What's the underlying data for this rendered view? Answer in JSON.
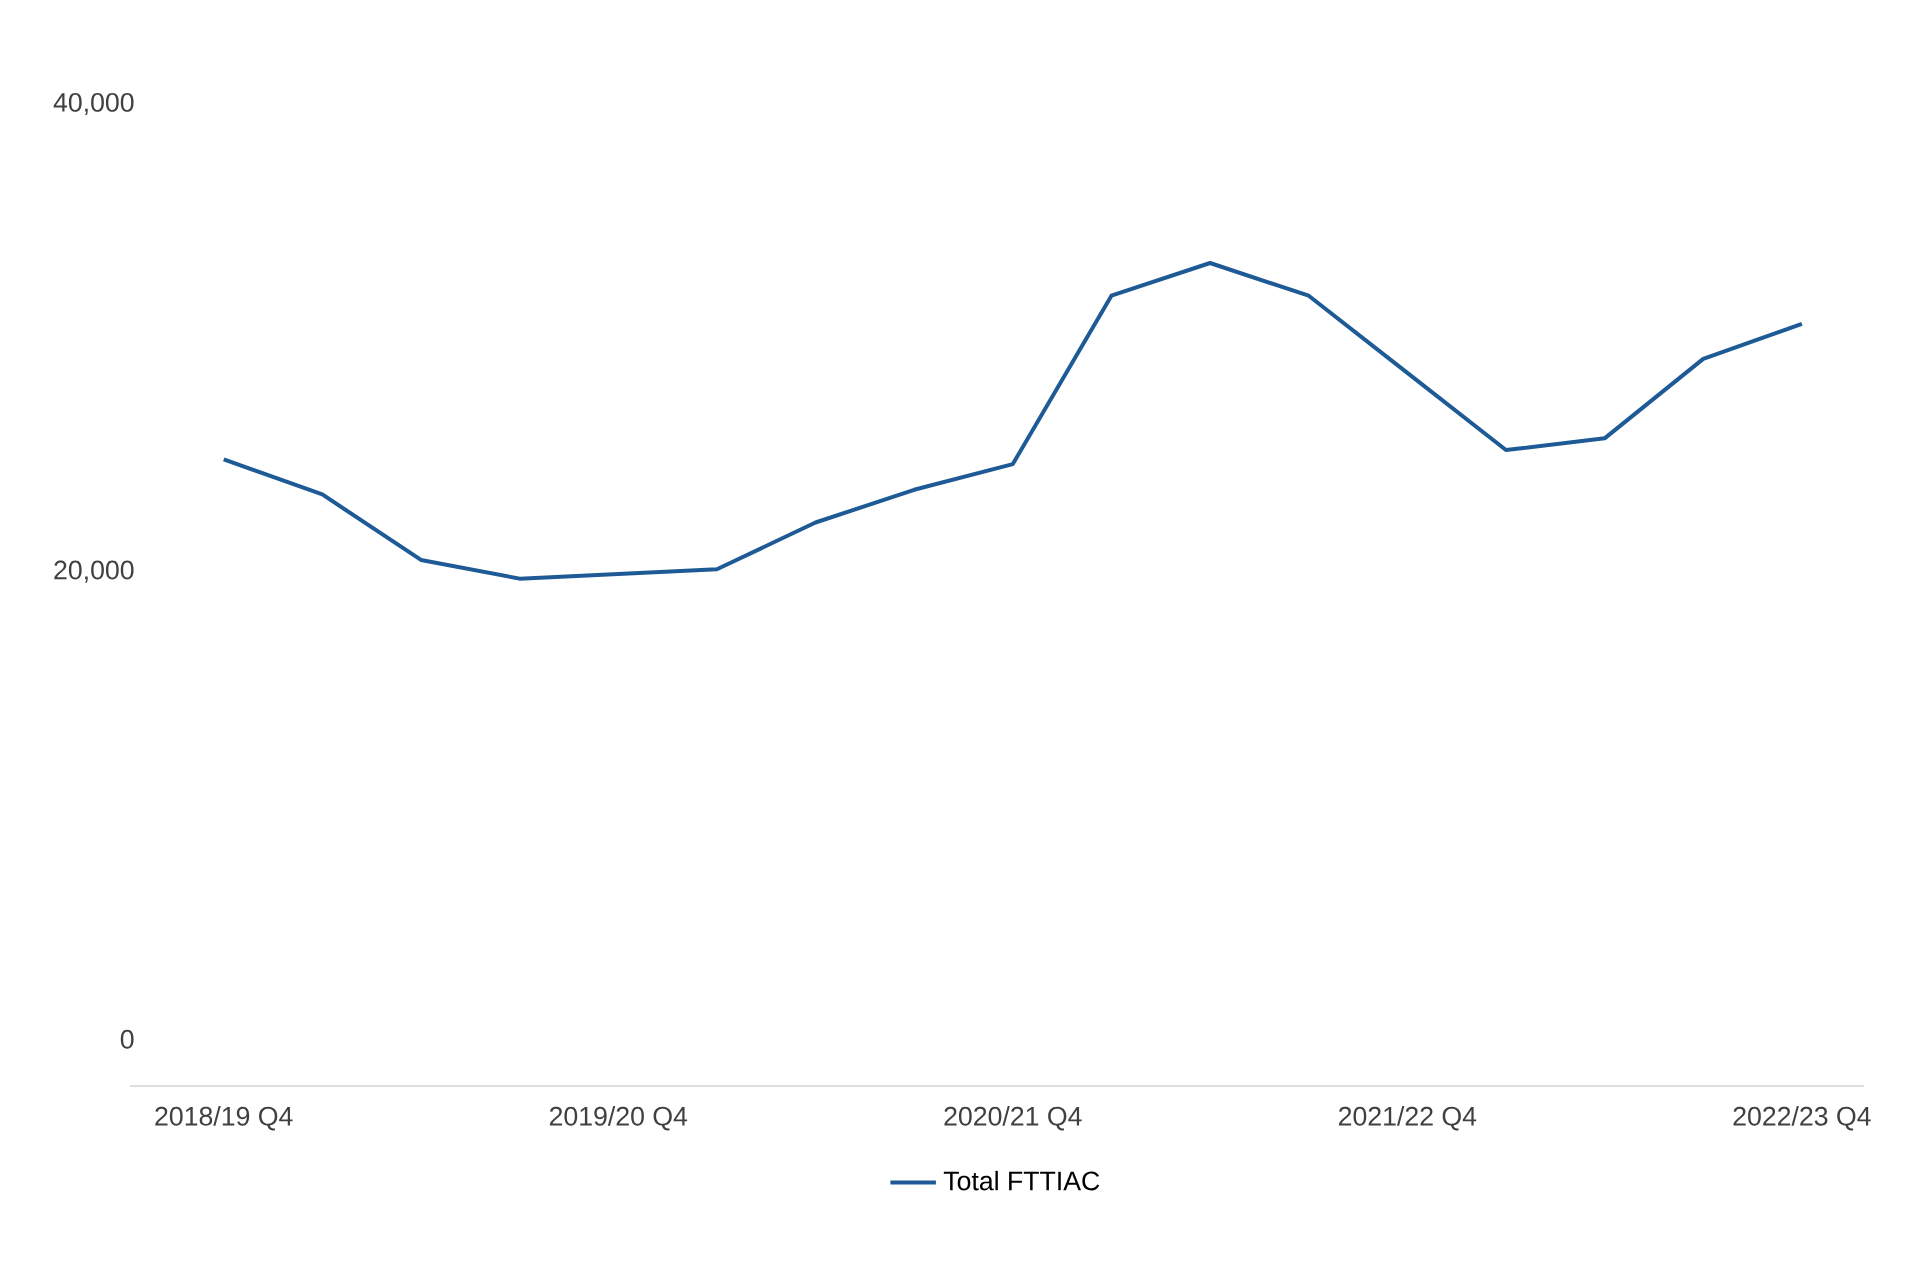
{
  "chart_data": {
    "type": "line",
    "categories": [
      "2018/19 Q4",
      null,
      null,
      null,
      "2019/20 Q4",
      null,
      null,
      null,
      "2020/21 Q4",
      null,
      null,
      null,
      "2021/22 Q4",
      null,
      null,
      null,
      "2022/23 Q4"
    ],
    "series": [
      {
        "name": "Total FTTIAC",
        "color": "#1d5a96",
        "values": [
          24800,
          23300,
          20500,
          19700,
          19900,
          20100,
          22100,
          23500,
          24600,
          31800,
          33200,
          31800,
          28500,
          25200,
          25700,
          29100,
          30600
        ]
      }
    ],
    "ylim": [
      -2000,
      40000
    ],
    "yticks": [
      {
        "value": 0,
        "label": "0"
      },
      {
        "value": 20000,
        "label": "20,000"
      },
      {
        "value": 40000,
        "label": "40,000"
      }
    ],
    "legend": "bottom"
  }
}
